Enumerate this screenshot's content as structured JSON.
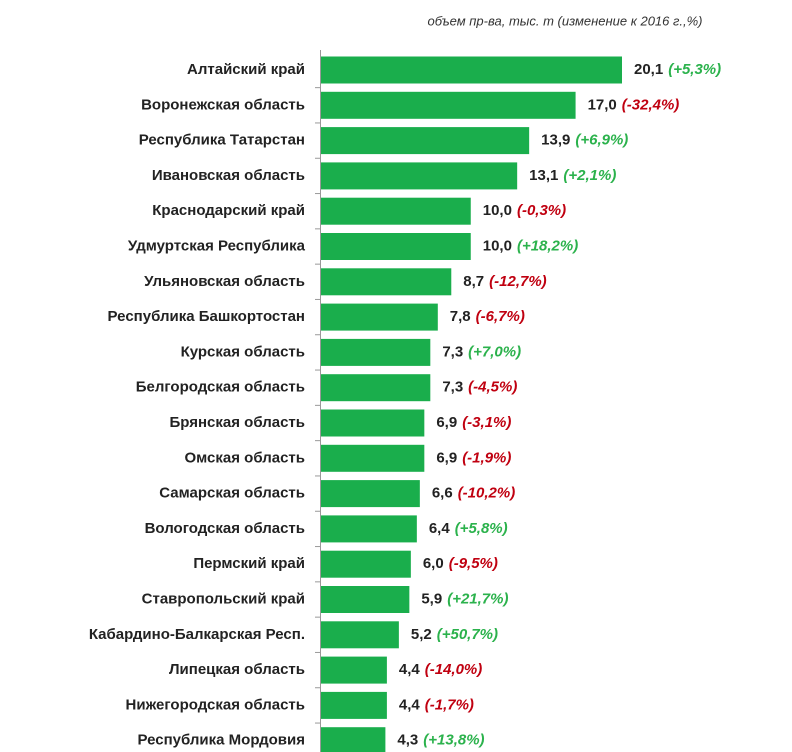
{
  "chart_data": {
    "type": "hbar",
    "subtitle": "объем пр-ва, тыс. т  (изменение  к 2016 г.,%)",
    "categories": [
      "Алтайский край",
      "Воронежская область",
      "Республика Татарстан",
      "Ивановская область",
      "Краснодарский край",
      "Удмуртская Республика",
      "Ульяновская область",
      "Республика Башкортостан",
      "Курская область",
      "Белгородская область",
      "Брянская область",
      "Омская область",
      "Самарская область",
      "Вологодская  область",
      "Пермский край",
      "Ставропольский край",
      "Кабардино-Балкарская Респ.",
      "Липецкая область",
      "Нижегородская область",
      "Республика Мордовия"
    ],
    "values": [
      20.1,
      17.0,
      13.9,
      13.1,
      10.0,
      10.0,
      8.7,
      7.8,
      7.3,
      7.3,
      6.9,
      6.9,
      6.6,
      6.4,
      6.0,
      5.9,
      5.2,
      4.4,
      4.4,
      4.3
    ],
    "value_labels": [
      "20,1",
      "17,0",
      "13,9",
      "13,1",
      "10,0",
      "10,0",
      "8,7",
      "7,8",
      "7,3",
      "7,3",
      "6,9",
      "6,9",
      "6,6",
      "6,4",
      "6,0",
      "5,9",
      "5,2",
      "4,4",
      "4,4",
      "4,3"
    ],
    "color": "#1aae4c",
    "changes": {
      "values": [
        5.3,
        -32.4,
        6.9,
        2.1,
        -0.3,
        18.2,
        -12.7,
        -6.7,
        7.0,
        -4.5,
        -3.1,
        -1.9,
        -10.2,
        5.8,
        -9.5,
        21.7,
        50.7,
        -14.0,
        -1.7,
        13.8
      ],
      "value_labels": [
        "(+5,3%)",
        "(-32,4%)",
        "(+6,9%)",
        "(+2,1%)",
        "(-0,3%)",
        "(+18,2%)",
        "(-12,7%)",
        "(-6,7%)",
        "(+7,0%)",
        "(-4,5%)",
        "(-3,1%)",
        "(-1,9%)",
        "(-10,2%)",
        "(+5,8%)",
        "(-9,5%)",
        "(+21,7%)",
        "(+50,7%)",
        "(-14,0%)",
        "(-1,7%)",
        "(+13,8%)"
      ],
      "positive_color": "#2bb24c",
      "negative_color": "#c00010"
    }
  }
}
